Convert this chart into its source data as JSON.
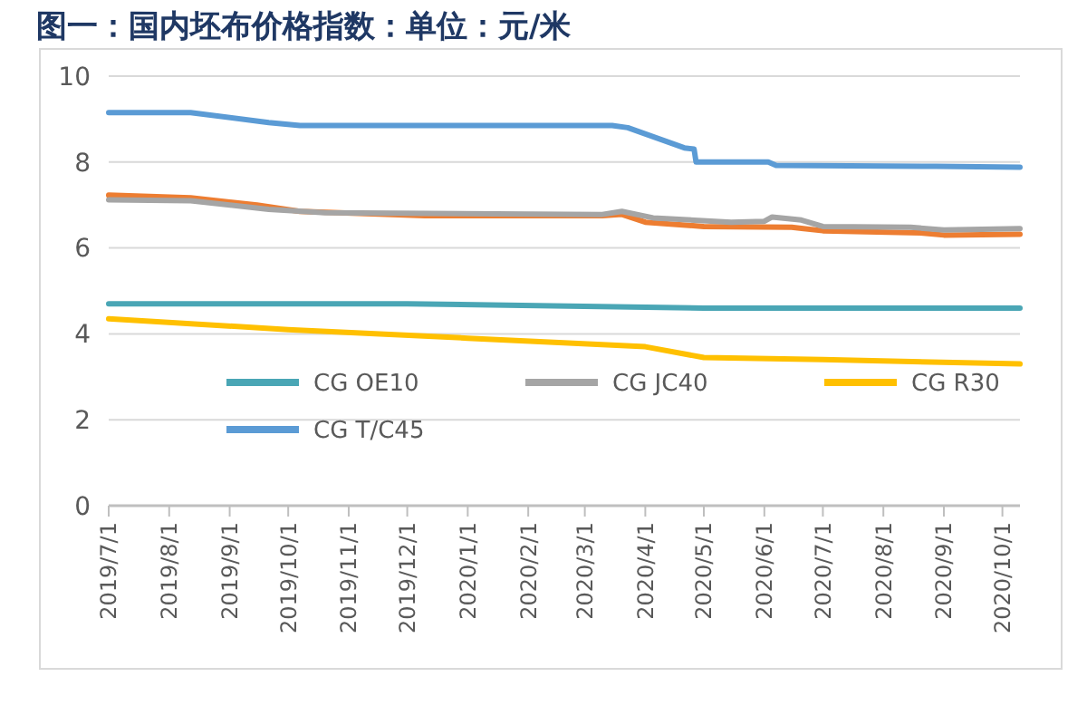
{
  "chart_data": {
    "type": "line",
    "title": "图一：国内坯布价格指数：单位：元/米",
    "xlim": [
      "2019-07-01",
      "2020-10-10"
    ],
    "xticks": [
      {
        "value": "2019-07-01",
        "label": "2019/7/1"
      },
      {
        "value": "2019-08-01",
        "label": "2019/8/1"
      },
      {
        "value": "2019-09-01",
        "label": "2019/9/1"
      },
      {
        "value": "2019-10-01",
        "label": "2019/10/1"
      },
      {
        "value": "2019-11-01",
        "label": "2019/11/1"
      },
      {
        "value": "2019-12-01",
        "label": "2019/12/1"
      },
      {
        "value": "2020-01-01",
        "label": "2020/1/1"
      },
      {
        "value": "2020-02-01",
        "label": "2020/2/1"
      },
      {
        "value": "2020-03-01",
        "label": "2020/3/1"
      },
      {
        "value": "2020-04-01",
        "label": "2020/4/1"
      },
      {
        "value": "2020-05-01",
        "label": "2020/5/1"
      },
      {
        "value": "2020-06-01",
        "label": "2020/6/1"
      },
      {
        "value": "2020-07-01",
        "label": "2020/7/1"
      },
      {
        "value": "2020-08-01",
        "label": "2020/8/1"
      },
      {
        "value": "2020-09-01",
        "label": "2020/9/1"
      },
      {
        "value": "2020-10-01",
        "label": "2020/10/1"
      }
    ],
    "ylim": [
      0,
      10
    ],
    "yticks": [
      0,
      2,
      4,
      6,
      8,
      10
    ],
    "grid": "y",
    "legend": "bottom",
    "marker": "none",
    "line_style": "solid",
    "series": [
      {
        "name": "CG OE10",
        "color": "#4aa6b5",
        "x": [
          "2019-07-01",
          "2019-12-01",
          "2020-05-01",
          "2020-10-10"
        ],
        "values": [
          4.7,
          4.7,
          4.6,
          4.6
        ]
      },
      {
        "color": "#ed7d31",
        "x": [
          "2019-07-01",
          "2019-08-12",
          "2019-09-15",
          "2019-10-07",
          "2019-12-10",
          "2020-03-10",
          "2020-03-20",
          "2020-04-01",
          "2020-05-01",
          "2020-06-15",
          "2020-07-01",
          "2020-08-20",
          "2020-09-01",
          "2020-10-10"
        ],
        "values": [
          7.23,
          7.17,
          7.0,
          6.85,
          6.75,
          6.75,
          6.78,
          6.6,
          6.5,
          6.48,
          6.4,
          6.35,
          6.3,
          6.32
        ]
      },
      {
        "name": "CG JC40",
        "color": "#a5a5a5",
        "x": [
          "2019-07-01",
          "2019-08-12",
          "2019-09-21",
          "2019-10-20",
          "2020-03-10",
          "2020-03-20",
          "2020-04-05",
          "2020-05-15",
          "2020-06-01",
          "2020-06-05",
          "2020-06-20",
          "2020-07-01",
          "2020-08-15",
          "2020-09-01",
          "2020-10-10"
        ],
        "values": [
          7.12,
          7.1,
          6.9,
          6.82,
          6.78,
          6.85,
          6.7,
          6.6,
          6.62,
          6.72,
          6.65,
          6.5,
          6.48,
          6.42,
          6.45
        ]
      },
      {
        "name": "CG R30",
        "color": "#ffc000",
        "x": [
          "2019-07-01",
          "2019-10-01",
          "2020-01-01",
          "2020-04-01",
          "2020-05-01",
          "2020-07-01",
          "2020-10-10"
        ],
        "values": [
          4.35,
          4.1,
          3.9,
          3.7,
          3.45,
          3.4,
          3.3
        ]
      },
      {
        "name": "CG T/C45",
        "color": "#5b9bd5",
        "x": [
          "2019-07-01",
          "2019-08-12",
          "2019-09-21",
          "2019-10-07",
          "2020-03-15",
          "2020-03-23",
          "2020-04-21",
          "2020-04-26",
          "2020-04-27",
          "2020-06-03",
          "2020-06-07",
          "2020-08-28",
          "2020-10-10"
        ],
        "values": [
          9.15,
          9.15,
          8.92,
          8.85,
          8.85,
          8.8,
          8.33,
          8.3,
          8.0,
          8.0,
          7.92,
          7.9,
          7.88
        ]
      }
    ]
  }
}
